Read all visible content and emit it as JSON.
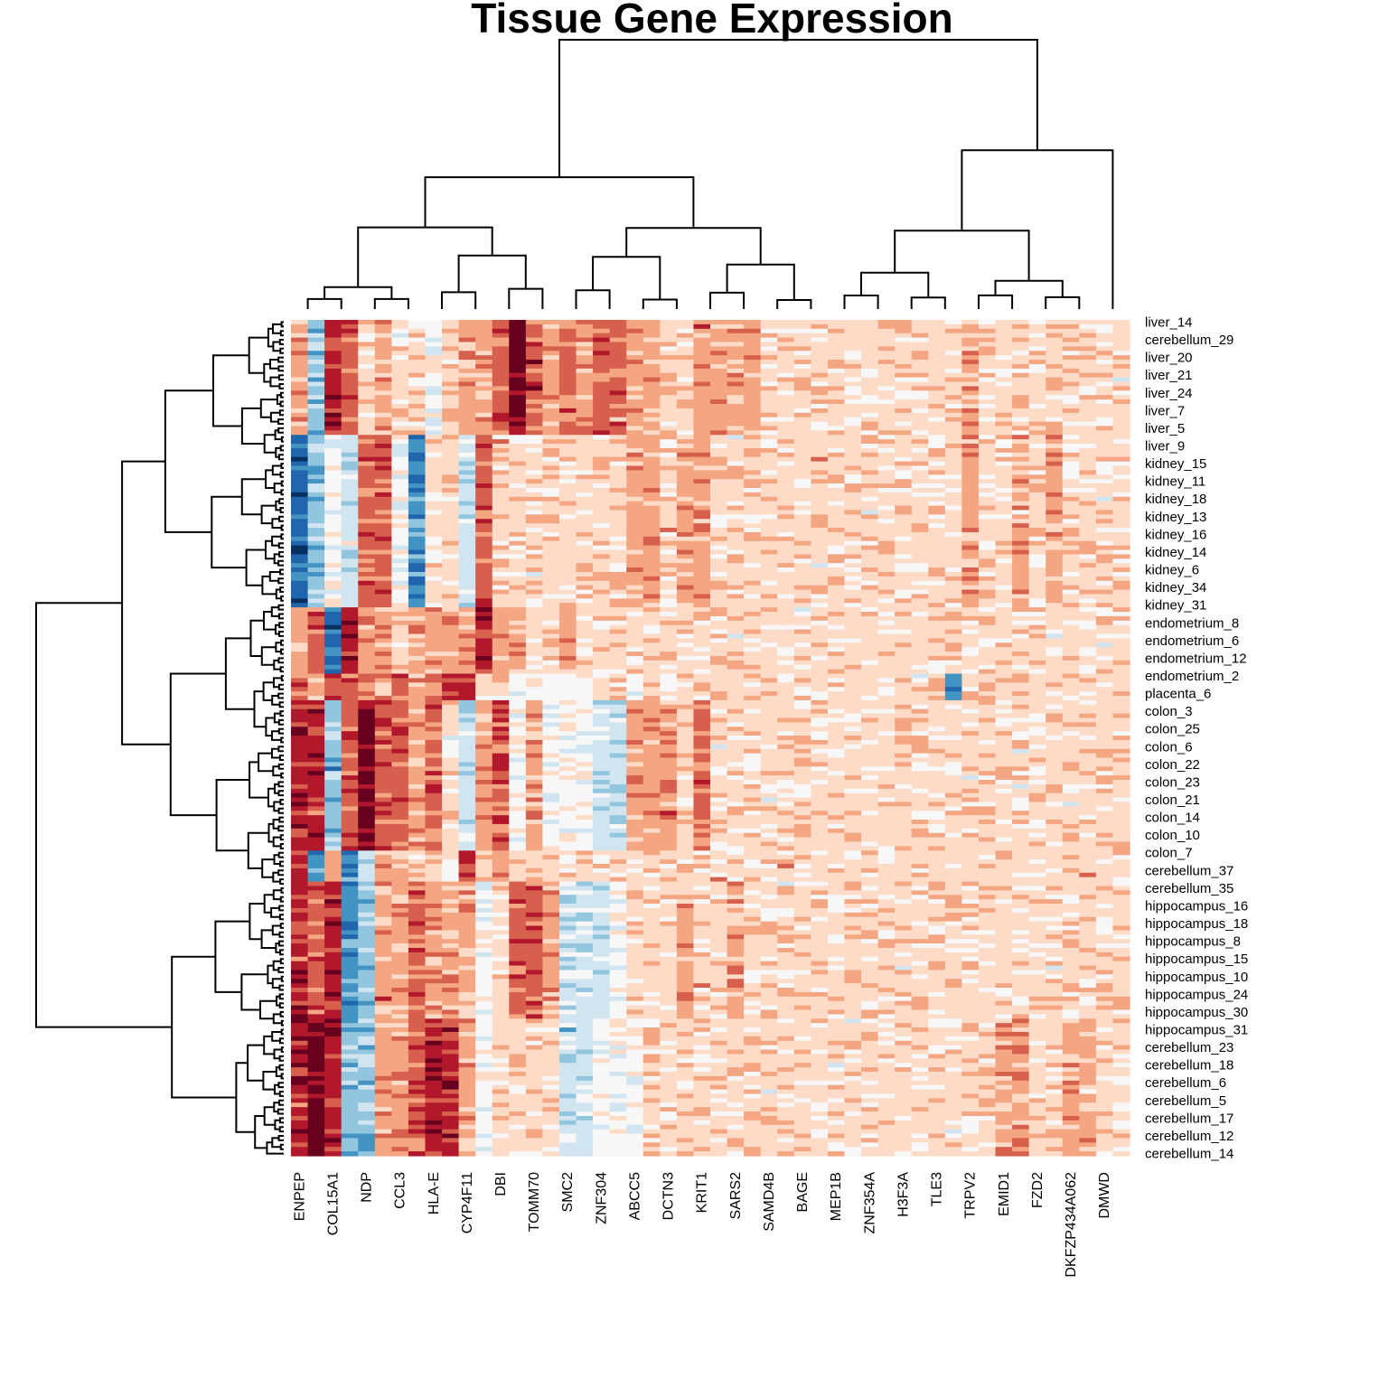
{
  "chart_data": {
    "type": "heatmap",
    "title": "Tissue Gene Expression",
    "palette": [
      "#053061",
      "#2166ac",
      "#4393c3",
      "#92c5de",
      "#d1e5f0",
      "#f7f7f7",
      "#fddbc7",
      "#f4a582",
      "#d6604d",
      "#b2182b",
      "#67001f"
    ],
    "color_scale": "RdBu (reversed): blue = low expression, red = high expression",
    "n_rows": 189,
    "columns": [
      "ENPEP",
      "COL15A1",
      "NDP",
      "CCL3",
      "HLA-E",
      "CYP4F11",
      "DBI",
      "TOMM70",
      "SMC2",
      "ZNF304",
      "ABCC5",
      "DCTN3",
      "KRIT1",
      "SARS2",
      "SAMD4B",
      "BAGE",
      "MEP1B",
      "ZNF354A",
      "H3F3A",
      "TLE3",
      "TRPV2",
      "EMID1",
      "FZD2",
      "DKFZP434A062",
      "DMWD"
    ],
    "n_columns": 50,
    "row_labels": [
      "liver_14",
      "cerebellum_29",
      "liver_20",
      "liver_21",
      "liver_24",
      "liver_7",
      "liver_5",
      "liver_9",
      "kidney_15",
      "kidney_11",
      "kidney_18",
      "kidney_13",
      "kidney_16",
      "kidney_14",
      "kidney_6",
      "kidney_34",
      "kidney_31",
      "endometrium_8",
      "endometrium_6",
      "endometrium_12",
      "endometrium_2",
      "placenta_6",
      "colon_3",
      "colon_25",
      "colon_6",
      "colon_22",
      "colon_23",
      "colon_21",
      "colon_14",
      "colon_10",
      "colon_7",
      "cerebellum_37",
      "cerebellum_35",
      "hippocampus_16",
      "hippocampus_18",
      "hippocampus_8",
      "hippocampus_15",
      "hippocampus_10",
      "hippocampus_24",
      "hippocampus_30",
      "hippocampus_31",
      "cerebellum_23",
      "cerebellum_18",
      "cerebellum_6",
      "cerebellum_5",
      "cerebellum_17",
      "cerebellum_12",
      "cerebellum_14"
    ],
    "row_groups": [
      {
        "tissue": "liver",
        "rows": 26
      },
      {
        "tissue": "kidney",
        "rows": 39
      },
      {
        "tissue": "endometrium",
        "rows": 15
      },
      {
        "tissue": "placenta",
        "rows": 6
      },
      {
        "tissue": "colon",
        "rows": 34
      },
      {
        "tissue": "cerebellum",
        "rows": 7
      },
      {
        "tissue": "hippocampus",
        "rows": 31
      },
      {
        "tissue": "cerebellum",
        "rows": 31
      }
    ],
    "group_profiles": {
      "liver": [
        7,
        3,
        9,
        8,
        6,
        7,
        6,
        6,
        5,
        6,
        7,
        7,
        8,
        10,
        8,
        7,
        8,
        7,
        8,
        8,
        7,
        7,
        6,
        6,
        7,
        7,
        7,
        7,
        6,
        6,
        6,
        6,
        6,
        6,
        6,
        6,
        6,
        6,
        6,
        6,
        7,
        6,
        6,
        6,
        6,
        6,
        6,
        6,
        6,
        6
      ],
      "kidney": [
        1,
        3,
        5,
        4,
        8,
        8,
        5,
        2,
        6,
        6,
        4,
        8,
        6,
        6,
        6,
        6,
        6,
        6,
        6,
        6,
        7,
        7,
        6,
        7,
        7,
        6,
        6,
        6,
        6,
        6,
        6,
        6,
        6,
        6,
        6,
        6,
        6,
        6,
        6,
        6,
        7,
        6,
        6,
        7,
        6,
        7,
        6,
        6,
        6,
        6
      ],
      "endometrium": [
        7,
        8,
        1,
        9,
        7,
        7,
        6,
        7,
        7,
        7,
        7,
        9,
        7,
        7,
        6,
        6,
        7,
        6,
        6,
        6,
        6,
        6,
        6,
        6,
        6,
        6,
        6,
        6,
        6,
        6,
        6,
        6,
        6,
        6,
        6,
        6,
        6,
        6,
        6,
        6,
        6,
        6,
        6,
        6,
        6,
        6,
        6,
        6,
        6,
        6
      ],
      "placenta": [
        8,
        7,
        9,
        8,
        7,
        7,
        8,
        7,
        8,
        9,
        9,
        6,
        6,
        5,
        5,
        5,
        5,
        5,
        6,
        6,
        5,
        6,
        5,
        6,
        6,
        6,
        6,
        6,
        6,
        6,
        6,
        6,
        6,
        6,
        6,
        6,
        6,
        6,
        7,
        2,
        6,
        6,
        6,
        6,
        6,
        6,
        6,
        6,
        6,
        6
      ],
      "colon": [
        9,
        9,
        3,
        8,
        10,
        8,
        8,
        7,
        8,
        6,
        4,
        7,
        8,
        5,
        7,
        5,
        5,
        5,
        4,
        4,
        7,
        7,
        7,
        6,
        8,
        6,
        6,
        6,
        6,
        6,
        6,
        6,
        6,
        6,
        6,
        6,
        6,
        6,
        6,
        6,
        6,
        6,
        6,
        6,
        6,
        6,
        6,
        6,
        6,
        6
      ],
      "cerebellum": [
        9,
        2,
        7,
        2,
        4,
        7,
        7,
        6,
        6,
        5,
        9,
        6,
        7,
        6,
        6,
        6,
        6,
        6,
        6,
        6,
        6,
        6,
        6,
        6,
        6,
        6,
        6,
        6,
        6,
        6,
        6,
        6,
        6,
        6,
        6,
        6,
        6,
        6,
        6,
        6,
        6,
        6,
        6,
        6,
        6,
        6,
        6,
        6,
        6,
        6
      ],
      "hippocampus": [
        9,
        8,
        9,
        2,
        3,
        7,
        7,
        8,
        7,
        7,
        7,
        5,
        6,
        8,
        8,
        7,
        4,
        4,
        4,
        5,
        6,
        6,
        6,
        7,
        6,
        6,
        7,
        6,
        6,
        6,
        6,
        6,
        6,
        6,
        6,
        6,
        6,
        6,
        6,
        6,
        6,
        6,
        6,
        6,
        6,
        6,
        6,
        6,
        6,
        6
      ],
      "cerebellum2": [
        9,
        10,
        9,
        3,
        3,
        7,
        7,
        8,
        9,
        9,
        7,
        5,
        6,
        6,
        6,
        6,
        4,
        4,
        5,
        5,
        5,
        6,
        6,
        6,
        6,
        6,
        6,
        6,
        6,
        6,
        6,
        6,
        6,
        6,
        6,
        6,
        6,
        6,
        6,
        6,
        6,
        6,
        7,
        7,
        6,
        6,
        7,
        7,
        6,
        6
      ]
    }
  }
}
